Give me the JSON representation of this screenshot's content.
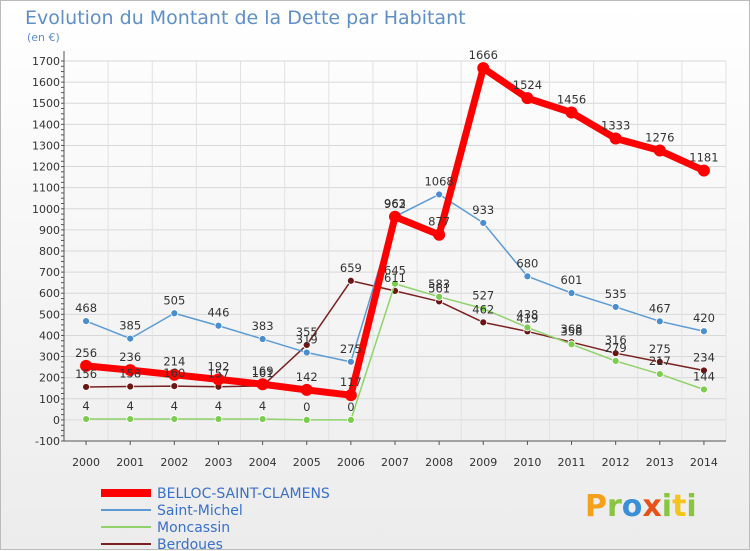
{
  "header": {
    "title": "Evolution du Montant de la Dette par Habitant",
    "unit": "(en €)"
  },
  "logo": {
    "letters": [
      "P",
      "r",
      "o",
      "x",
      "i",
      "t",
      "i"
    ],
    "colors": [
      "#f5a01a",
      "#8bc440",
      "#3b8fd6",
      "#e8521a",
      "#8bc440",
      "#f5c31a",
      "#8bc440"
    ]
  },
  "chart_data": {
    "type": "line",
    "title": "Evolution du Montant de la Dette par Habitant",
    "ylabel": "(en €)",
    "xlabel": "",
    "x": [
      2000,
      2001,
      2002,
      2003,
      2004,
      2005,
      2006,
      2007,
      2008,
      2009,
      2010,
      2011,
      2012,
      2013,
      2014
    ],
    "ylim": [
      -100,
      1700
    ],
    "yticks": [
      -100,
      0,
      100,
      200,
      300,
      400,
      500,
      600,
      700,
      800,
      900,
      1000,
      1100,
      1200,
      1300,
      1400,
      1500,
      1600,
      1700
    ],
    "grid": true,
    "legend_position": "bottom-left",
    "series": [
      {
        "name": "BELLOC-SAINT-CLAMENS",
        "color": "#ff0000",
        "values": [
          256,
          236,
          214,
          192,
          169,
          142,
          117,
          962,
          877,
          1666,
          1524,
          1456,
          1333,
          1276,
          1181
        ]
      },
      {
        "name": "Saint-Michel",
        "color": "#5b9bd5",
        "values": [
          468,
          385,
          505,
          446,
          383,
          319,
          275,
          963,
          1068,
          933,
          680,
          601,
          535,
          467,
          420
        ]
      },
      {
        "name": "Moncassin",
        "color": "#8fd36a",
        "values": [
          4,
          4,
          4,
          4,
          4,
          0,
          0,
          645,
          583,
          527,
          438,
          358,
          279,
          217,
          144
        ]
      },
      {
        "name": "Berdoues",
        "color": "#7b2020",
        "values": [
          156,
          158,
          160,
          157,
          161,
          355,
          659,
          611,
          561,
          462,
          419,
          368,
          316,
          275,
          234
        ]
      }
    ]
  }
}
